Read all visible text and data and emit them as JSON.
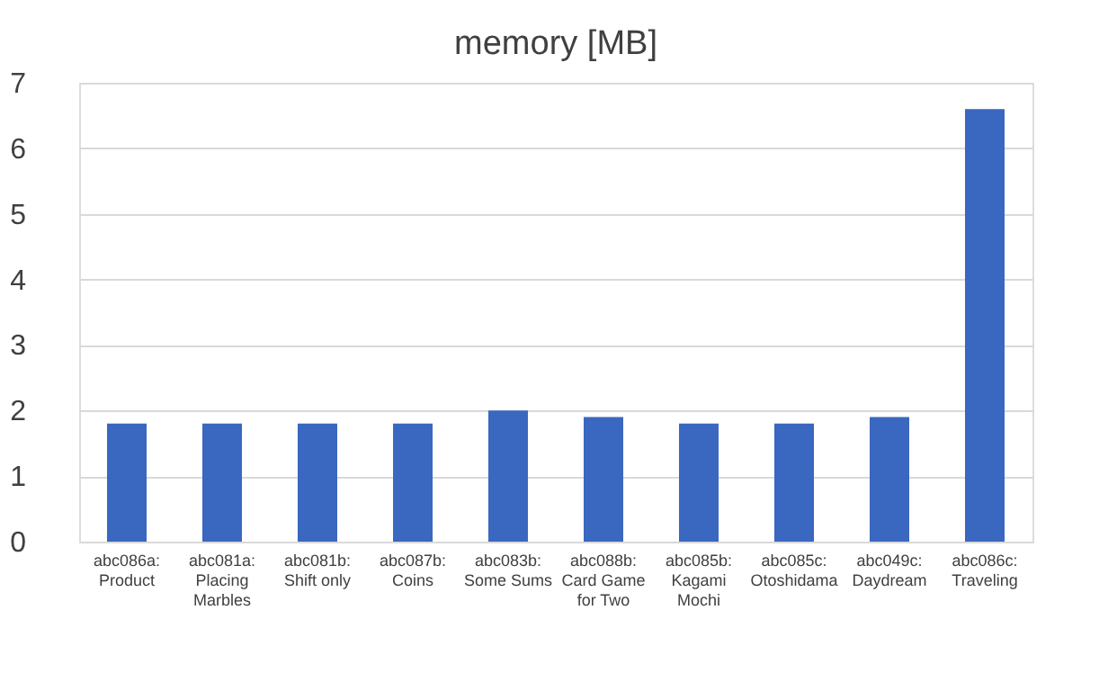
{
  "chart_data": {
    "type": "bar",
    "title": "memory [MB]",
    "categories": [
      "abc086a: Product",
      "abc081a: Placing Marbles",
      "abc081b: Shift only",
      "abc087b: Coins",
      "abc083b: Some Sums",
      "abc088b: Card Game for Two",
      "abc085b: Kagami Mochi",
      "abc085c: Otoshidama",
      "abc049c: Daydream",
      "abc086c: Traveling"
    ],
    "values": [
      1.8,
      1.8,
      1.8,
      1.8,
      2.0,
      1.9,
      1.8,
      1.8,
      1.9,
      6.6
    ],
    "color": "#3a67bf",
    "ylim": [
      0,
      7
    ],
    "yticks": [
      0,
      1,
      2,
      3,
      4,
      5,
      6,
      7
    ],
    "grid": "y"
  }
}
